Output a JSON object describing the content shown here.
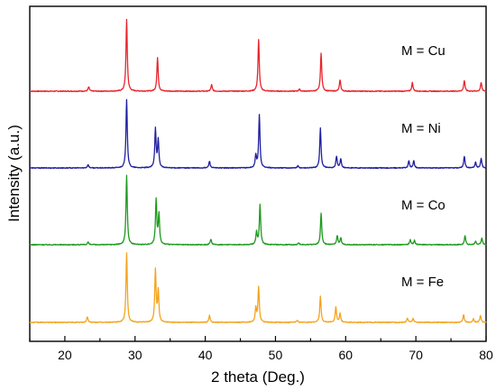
{
  "chart_data": {
    "type": "line",
    "title": "",
    "xlabel": "2 theta (Deg.)",
    "ylabel": "Intensity (a.u.)",
    "xlim": [
      15,
      80
    ],
    "xticks": [
      20,
      30,
      40,
      50,
      60,
      70,
      80
    ],
    "xtick_labels": [
      "20",
      "30",
      "40",
      "50",
      "60",
      "70",
      "80"
    ],
    "y_ticks_shown": false,
    "grid": false,
    "legend": "none",
    "series": [
      {
        "name": "M = Cu",
        "color": "#e8242b",
        "peaks": [
          [
            23.4,
            0.06
          ],
          [
            28.8,
            1.0
          ],
          [
            33.2,
            0.47
          ],
          [
            40.9,
            0.09
          ],
          [
            47.6,
            0.72
          ],
          [
            53.4,
            0.03
          ],
          [
            56.5,
            0.53
          ],
          [
            59.2,
            0.16
          ],
          [
            69.5,
            0.12
          ],
          [
            76.9,
            0.15
          ],
          [
            79.3,
            0.12
          ]
        ]
      },
      {
        "name": "M = Ni",
        "color": "#1f1f9e",
        "peaks": [
          [
            23.3,
            0.05
          ],
          [
            28.8,
            1.0
          ],
          [
            32.9,
            0.57
          ],
          [
            33.3,
            0.4
          ],
          [
            40.6,
            0.1
          ],
          [
            47.2,
            0.18
          ],
          [
            47.7,
            0.77
          ],
          [
            53.2,
            0.03
          ],
          [
            56.4,
            0.58
          ],
          [
            58.7,
            0.17
          ],
          [
            59.3,
            0.13
          ],
          [
            69.0,
            0.1
          ],
          [
            69.7,
            0.1
          ],
          [
            76.9,
            0.17
          ],
          [
            78.5,
            0.08
          ],
          [
            79.3,
            0.14
          ]
        ]
      },
      {
        "name": "M = Co",
        "color": "#1e9a1e",
        "peaks": [
          [
            23.3,
            0.04
          ],
          [
            28.8,
            1.0
          ],
          [
            33.0,
            0.65
          ],
          [
            33.4,
            0.43
          ],
          [
            40.8,
            0.08
          ],
          [
            47.3,
            0.18
          ],
          [
            47.8,
            0.58
          ],
          [
            53.3,
            0.03
          ],
          [
            56.5,
            0.45
          ],
          [
            58.8,
            0.13
          ],
          [
            59.3,
            0.1
          ],
          [
            69.2,
            0.07
          ],
          [
            69.8,
            0.06
          ],
          [
            77.0,
            0.13
          ],
          [
            78.5,
            0.05
          ],
          [
            79.4,
            0.1
          ]
        ]
      },
      {
        "name": "M = Fe",
        "color": "#f5a31c",
        "peaks": [
          [
            23.2,
            0.08
          ],
          [
            28.8,
            1.0
          ],
          [
            32.9,
            0.75
          ],
          [
            33.3,
            0.45
          ],
          [
            40.6,
            0.1
          ],
          [
            47.2,
            0.2
          ],
          [
            47.6,
            0.51
          ],
          [
            53.1,
            0.03
          ],
          [
            56.4,
            0.38
          ],
          [
            58.6,
            0.22
          ],
          [
            59.2,
            0.13
          ],
          [
            68.8,
            0.06
          ],
          [
            69.6,
            0.06
          ],
          [
            76.8,
            0.11
          ],
          [
            78.2,
            0.05
          ],
          [
            79.2,
            0.1
          ]
        ]
      }
    ]
  }
}
